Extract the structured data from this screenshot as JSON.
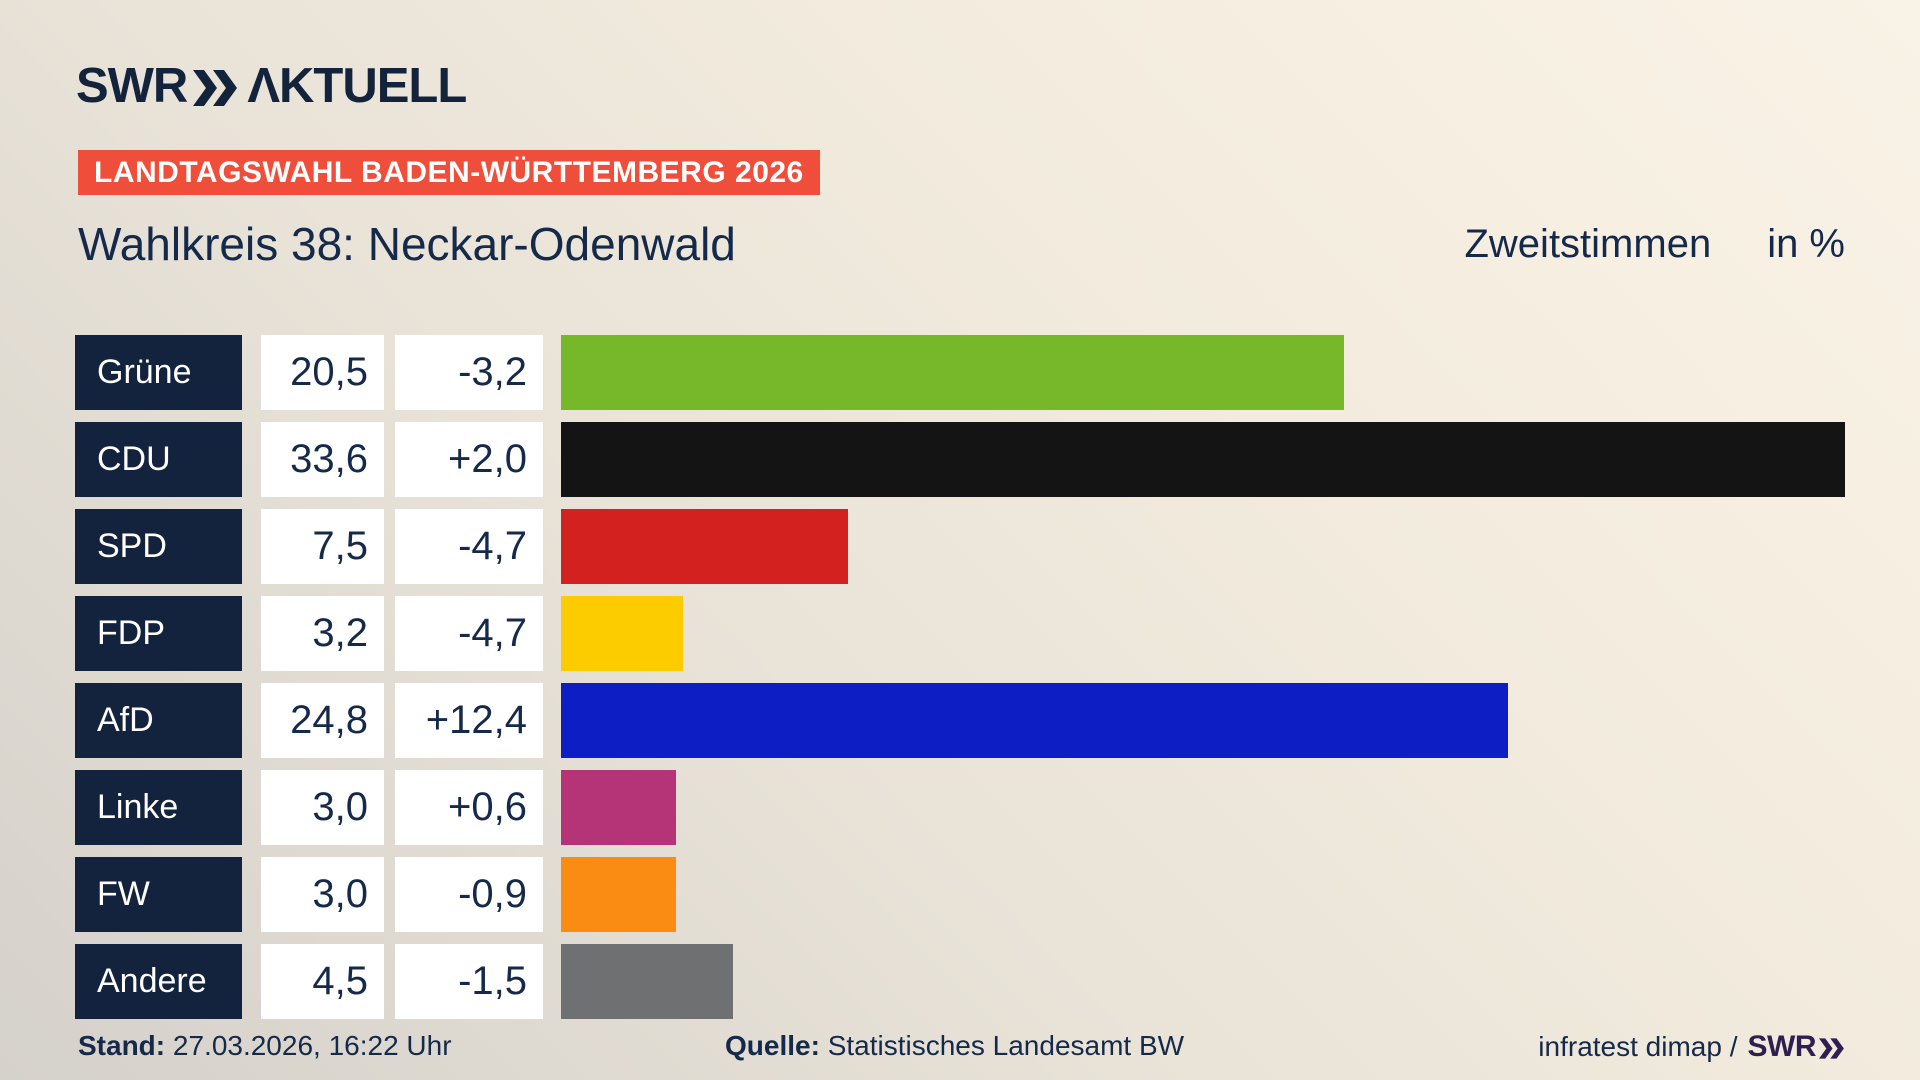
{
  "header": {
    "logo_swr": "SWR",
    "logo_aktuell": "ΛKTUELL",
    "banner": "LANDTAGSWAHL BADEN-WÜRTTEMBERG 2026",
    "title": "Wahlkreis 38: Neckar-Odenwald",
    "vote_type": "Zweitstimmen",
    "unit": "in %"
  },
  "chart_data": {
    "type": "bar",
    "title": "Wahlkreis 38: Neckar-Odenwald",
    "subtitle": "Zweitstimmen in %",
    "orientation": "horizontal",
    "categories": [
      "Grüne",
      "CDU",
      "SPD",
      "FDP",
      "AfD",
      "Linke",
      "FW",
      "Andere"
    ],
    "series": [
      {
        "name": "Zweitstimmen %",
        "values": [
          20.5,
          33.6,
          7.5,
          3.2,
          24.8,
          3.0,
          3.0,
          4.5
        ]
      },
      {
        "name": "Veränderung",
        "values": [
          -3.2,
          2.0,
          -4.7,
          -4.7,
          12.4,
          0.6,
          -0.9,
          -1.5
        ]
      }
    ],
    "unit": "%",
    "xlim": [
      0,
      35
    ],
    "grid": false,
    "legend": false,
    "bar_colors": [
      "#76b82a",
      "#141414",
      "#d2211f",
      "#fdcc00",
      "#0c1ec4",
      "#b53377",
      "#fa8c14",
      "#6e7071"
    ]
  },
  "rows": [
    {
      "party": "Grüne",
      "value": "20,5",
      "change": "-3,2",
      "value_num": 20.5,
      "color": "#76b82a"
    },
    {
      "party": "CDU",
      "value": "33,6",
      "change": "+2,0",
      "value_num": 33.6,
      "color": "#141414"
    },
    {
      "party": "SPD",
      "value": "7,5",
      "change": "-4,7",
      "value_num": 7.5,
      "color": "#d2211f"
    },
    {
      "party": "FDP",
      "value": "3,2",
      "change": "-4,7",
      "value_num": 3.2,
      "color": "#fdcc00"
    },
    {
      "party": "AfD",
      "value": "24,8",
      "change": "+12,4",
      "value_num": 24.8,
      "color": "#0c1ec4"
    },
    {
      "party": "Linke",
      "value": "3,0",
      "change": "+0,6",
      "value_num": 3.0,
      "color": "#b53377"
    },
    {
      "party": "FW",
      "value": "3,0",
      "change": "-0,9",
      "value_num": 3.0,
      "color": "#fa8c14"
    },
    {
      "party": "Andere",
      "value": "4,5",
      "change": "-1,5",
      "value_num": 4.5,
      "color": "#6e7071"
    }
  ],
  "footer": {
    "stand_label": "Stand:",
    "stand_value": "27.03.2026, 16:22 Uhr",
    "quelle_label": "Quelle:",
    "quelle_value": "Statistisches Landesamt BW",
    "credit_text": "infratest dimap /",
    "credit_logo": "SWR"
  },
  "colors": {
    "accent_red": "#ef4e3a",
    "navy": "#13233e",
    "text_navy": "#15294a",
    "credit_purple": "#2f1e4f",
    "background_beige": "#f9f2e6",
    "background_gray": "#d5d1cb"
  }
}
